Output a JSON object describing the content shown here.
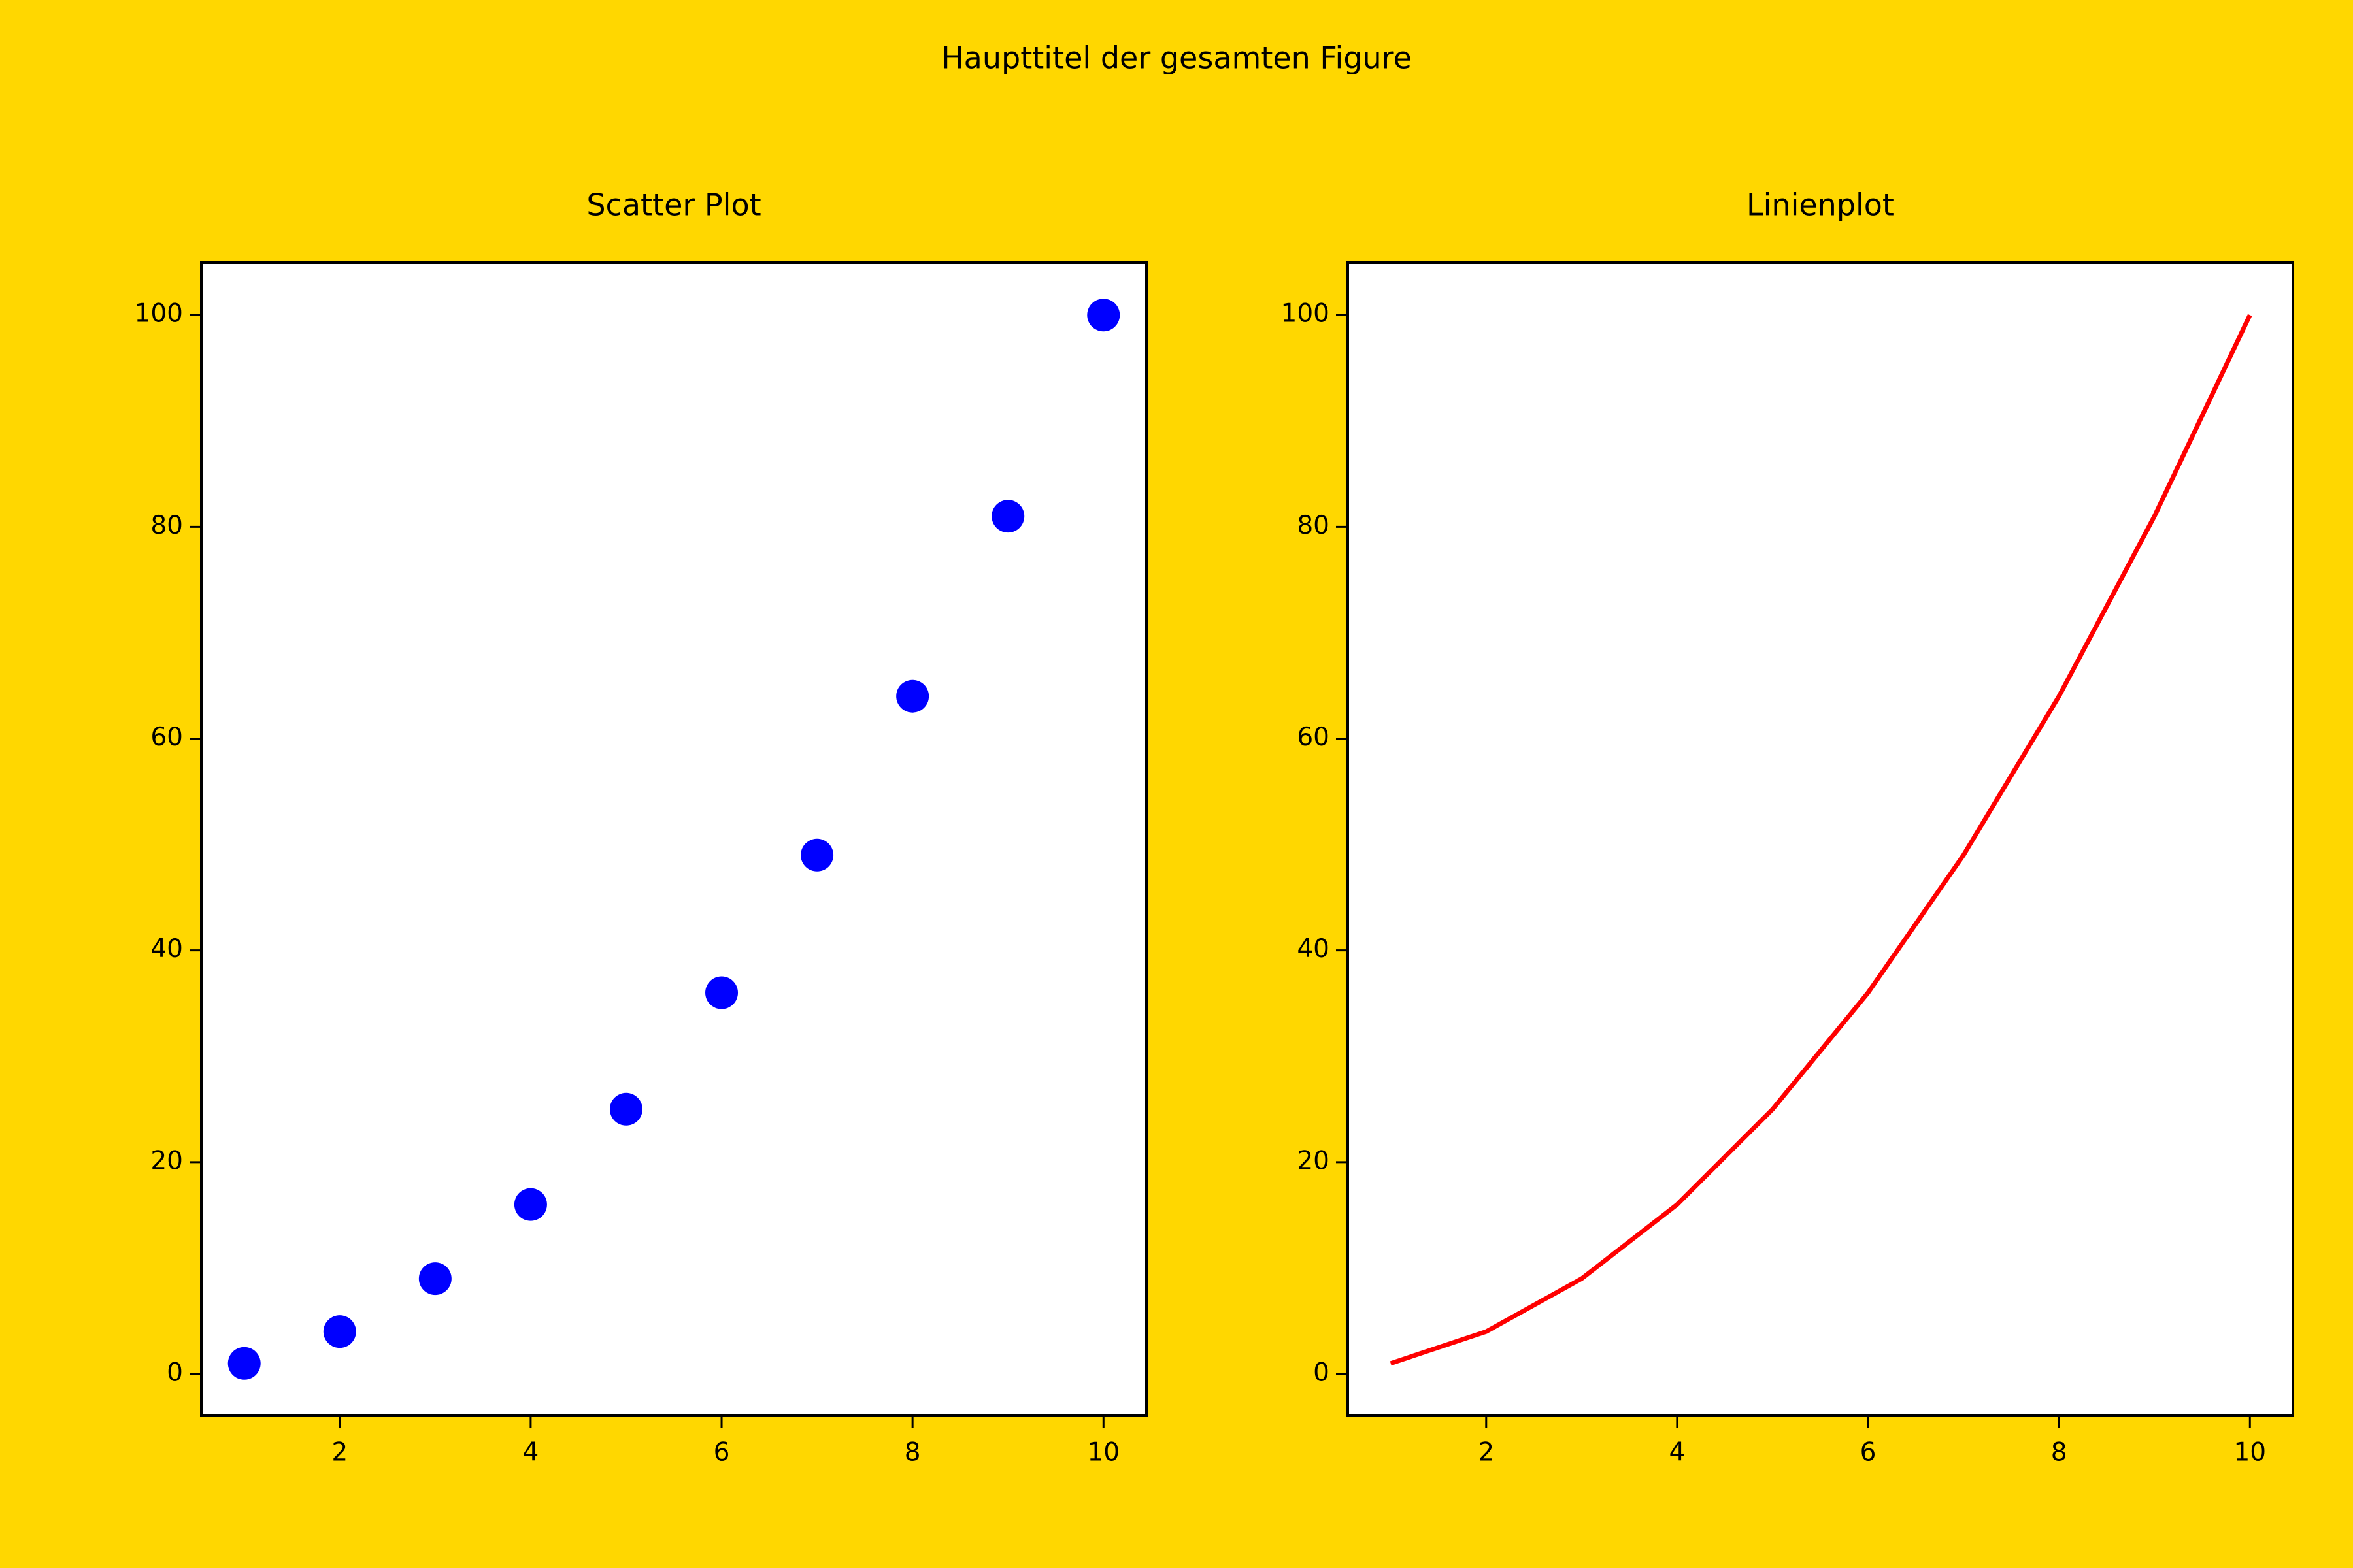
{
  "title": "Haupttitel der gesamten Figure",
  "chart_data": [
    {
      "type": "scatter",
      "title": "Scatter Plot",
      "x": [
        1,
        2,
        3,
        4,
        5,
        6,
        7,
        8,
        9,
        10
      ],
      "values": [
        1,
        4,
        9,
        16,
        25,
        36,
        49,
        64,
        81,
        100
      ],
      "color": "#0000ff",
      "xlim": [
        0.55,
        10.45
      ],
      "ylim": [
        -3.95,
        104.95
      ],
      "xticks": [
        2,
        4,
        6,
        8,
        10
      ],
      "yticks": [
        0,
        20,
        40,
        60,
        80,
        100
      ],
      "grid": false
    },
    {
      "type": "line",
      "title": "Linienplot",
      "x": [
        1,
        2,
        3,
        4,
        5,
        6,
        7,
        8,
        9,
        10
      ],
      "values": [
        1,
        4,
        9,
        16,
        25,
        36,
        49,
        64,
        81,
        100
      ],
      "color": "#ff0000",
      "xlim": [
        0.55,
        10.45
      ],
      "ylim": [
        -3.95,
        104.95
      ],
      "xticks": [
        2,
        4,
        6,
        8,
        10
      ],
      "yticks": [
        0,
        20,
        40,
        60,
        80,
        100
      ],
      "grid": false
    }
  ]
}
